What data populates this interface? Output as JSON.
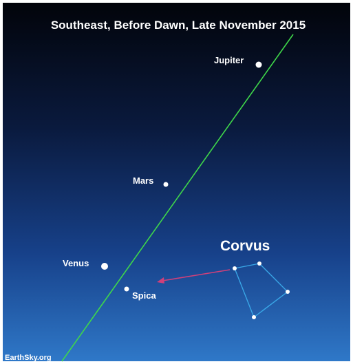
{
  "title": "Southeast, Before Dawn, Late November 2015",
  "objects": [
    {
      "label": "Jupiter"
    },
    {
      "label": "Mars"
    },
    {
      "label": "Venus"
    },
    {
      "label": "Spica"
    }
  ],
  "constellation": {
    "label": "Corvus"
  },
  "credit": "EarthSky.org"
}
